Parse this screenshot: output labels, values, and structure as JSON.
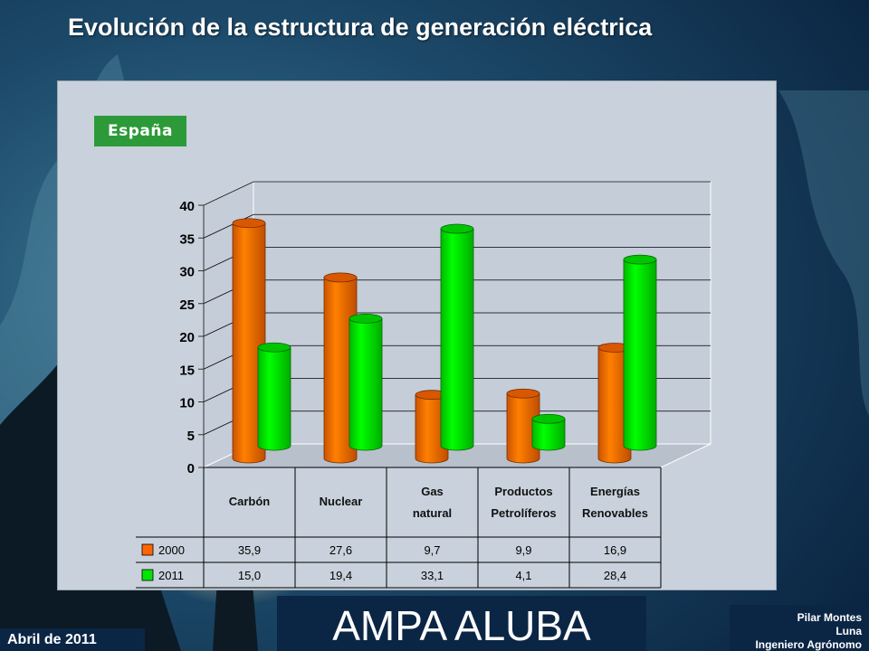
{
  "slide": {
    "title": "Evolución de la estructura de generación eléctrica",
    "region": "España"
  },
  "footer": {
    "brand": "AMPA ALUBA",
    "date": "Abril de 2011",
    "author_line1": "Pilar Montes",
    "author_line2": "Luna",
    "author_line3": "Ingeniero Agrónomo"
  },
  "colors": {
    "series_2000": "#ff6600",
    "series_2011": "#00e600",
    "badge": "#2d9a3a",
    "panel": "#c9d2dc"
  },
  "chart_data": {
    "type": "bar",
    "title": "",
    "categories": [
      [
        "Carbón"
      ],
      [
        "Nuclear"
      ],
      [
        "Gas",
        "natural"
      ],
      [
        "Productos",
        "Petrolíferos"
      ],
      [
        "Energías",
        "Renovables"
      ]
    ],
    "series": [
      {
        "name": "2000",
        "values": [
          35.9,
          27.6,
          9.7,
          9.9,
          16.9
        ],
        "labels": [
          "35,9",
          "27,6",
          "9,7",
          "9,9",
          "16,9"
        ],
        "color": "#ff6600"
      },
      {
        "name": "2011",
        "values": [
          15.0,
          19.4,
          33.1,
          4.1,
          28.4
        ],
        "labels": [
          "15,0",
          "19,4",
          "33,1",
          "4,1",
          "28,4"
        ],
        "color": "#00e600"
      }
    ],
    "ylim": [
      0,
      40
    ],
    "yticks": [
      0,
      5,
      10,
      15,
      20,
      25,
      30,
      35,
      40
    ],
    "grid": true,
    "data_table": true
  }
}
